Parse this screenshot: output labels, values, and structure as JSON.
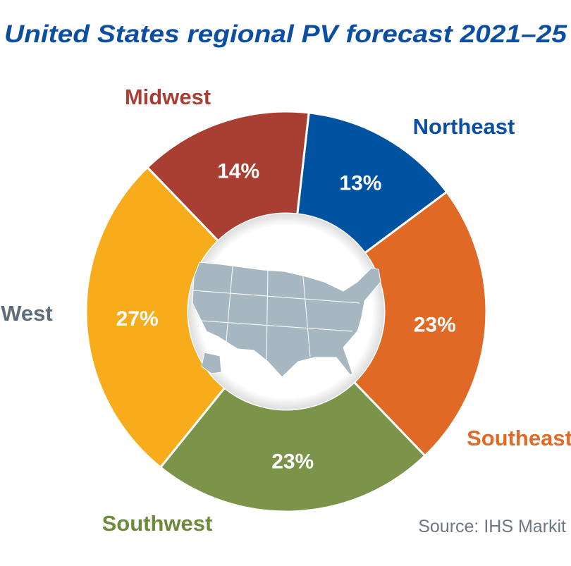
{
  "chart_data": {
    "type": "pie",
    "variant": "donut",
    "title": "United States regional PV forecast 2021–25",
    "source": "Source: IHS Markit",
    "start_angle_deg": 6.5,
    "slices": [
      {
        "name": "Northeast",
        "value": 13,
        "label": "13%",
        "color": "#0053A0"
      },
      {
        "name": "Southeast",
        "value": 23,
        "label": "23%",
        "color": "#E06A25"
      },
      {
        "name": "Southwest",
        "value": 23,
        "label": "23%",
        "color": "#7B944A"
      },
      {
        "name": "West",
        "value": 27,
        "label": "27%",
        "color": "#F7AC1B"
      },
      {
        "name": "Midwest",
        "value": 14,
        "label": "14%",
        "color": "#A93E32"
      }
    ],
    "label_colors": {
      "Northeast": "#0B4EA2",
      "Southeast": "#E06A25",
      "Southwest": "#6B8A3A",
      "West": "#5E6D79",
      "Midwest": "#A93E32"
    },
    "center_image": "us-map",
    "legend": "none"
  }
}
